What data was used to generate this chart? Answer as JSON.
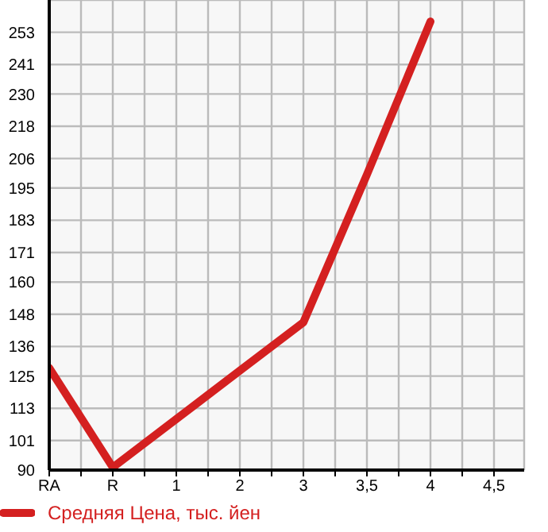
{
  "chart_data": {
    "type": "line",
    "categories": [
      "RA",
      "R",
      "1",
      "2",
      "3",
      "3,5",
      "4",
      "4,5"
    ],
    "series": [
      {
        "name": "Средняя Цена, тыс. йен",
        "color": "#d42020",
        "values": [
          128,
          91,
          109,
          127,
          145,
          200,
          257,
          null
        ]
      }
    ],
    "ylim": [
      90,
      265
    ],
    "yticks": [
      90,
      101,
      113,
      125,
      136,
      148,
      160,
      171,
      183,
      195,
      206,
      218,
      230,
      241,
      253
    ],
    "grid": true,
    "legend": "bottom",
    "marker": "none",
    "line_style": "solid"
  }
}
